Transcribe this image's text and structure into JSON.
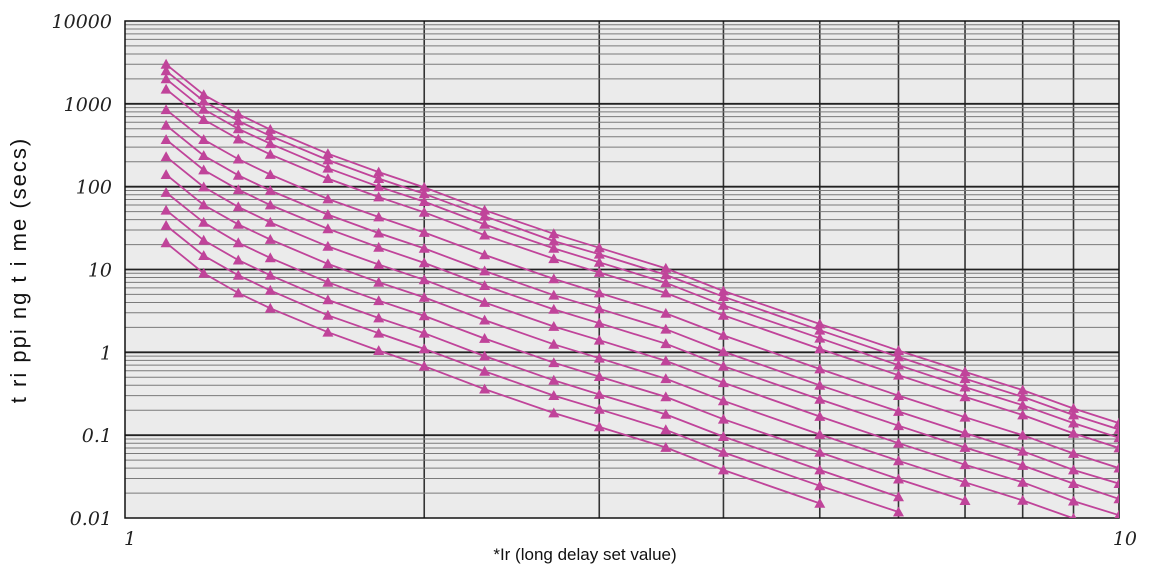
{
  "chart_data": {
    "type": "line",
    "xlabel": "*Ir (long delay set value)",
    "ylabel": "t ri ppi ng t i me (secs)",
    "xscale": "log",
    "yscale": "log",
    "xlim": [
      1,
      10
    ],
    "ylim": [
      0.01,
      10000
    ],
    "x_tick_labels": [
      "1",
      "10"
    ],
    "y_tick_labels": [
      "0.01",
      "0.1",
      "1",
      "10",
      "100",
      "1000",
      "10000"
    ],
    "grid": true,
    "marker": "triangle",
    "line_color": "#c0449a",
    "background_color": "#ebebeb",
    "x": [
      1.1,
      1.2,
      1.3,
      1.4,
      1.6,
      1.8,
      2.0,
      2.3,
      2.7,
      3.0,
      3.5,
      4.0,
      5.0,
      6.0,
      7.0,
      8.0,
      9.0,
      10.0
    ],
    "series": [
      {
        "values": [
          3000,
          1290,
          750,
          490,
          250,
          150,
          98,
          52,
          27,
          18.3,
          10.3,
          5.5,
          2.2,
          1.05,
          0.58,
          0.35,
          0.21,
          0.14
        ]
      },
      {
        "values": [
          2500,
          1080,
          620,
          410,
          210,
          125,
          82,
          44,
          22,
          15.3,
          8.6,
          4.7,
          1.85,
          0.88,
          0.48,
          0.29,
          0.175,
          0.117
        ]
      },
      {
        "values": [
          2000,
          860,
          500,
          330,
          167,
          100,
          66,
          35,
          18,
          12.2,
          6.9,
          3.7,
          1.48,
          0.7,
          0.38,
          0.23,
          0.14,
          0.093
        ]
      },
      {
        "values": [
          1500,
          645,
          375,
          245,
          125,
          75,
          49,
          26,
          13.5,
          9.2,
          5.2,
          2.8,
          1.1,
          0.53,
          0.29,
          0.175,
          0.105,
          0.07
        ]
      },
      {
        "values": [
          850,
          370,
          215,
          140,
          71,
          43,
          28,
          15,
          7.7,
          5.2,
          2.95,
          1.6,
          0.63,
          0.3,
          0.165,
          0.1,
          0.06,
          0.04
        ]
      },
      {
        "values": [
          550,
          237,
          137,
          90,
          46,
          27.5,
          18,
          9.6,
          4.9,
          3.35,
          1.9,
          1.02,
          0.4,
          0.193,
          0.106,
          0.064,
          0.038,
          0.026
        ]
      },
      {
        "values": [
          370,
          159,
          92,
          60,
          31,
          18.5,
          12,
          6.4,
          3.3,
          2.25,
          1.27,
          0.68,
          0.27,
          0.13,
          0.071,
          0.043,
          0.026,
          0.017
        ]
      },
      {
        "values": [
          230,
          99,
          57,
          37,
          19,
          11.5,
          7.5,
          4.0,
          2.05,
          1.4,
          0.79,
          0.43,
          0.168,
          0.08,
          0.044,
          0.027,
          0.016,
          0.0108
        ]
      },
      {
        "values": [
          140,
          60,
          35,
          23,
          11.7,
          7.0,
          4.6,
          2.45,
          1.25,
          0.85,
          0.48,
          0.26,
          0.102,
          0.049,
          0.027,
          0.0163,
          0.0099,
          null
        ]
      },
      {
        "values": [
          85,
          37,
          21,
          13.8,
          7.0,
          4.2,
          2.75,
          1.47,
          0.75,
          0.51,
          0.29,
          0.156,
          0.062,
          0.0295,
          0.0162,
          null,
          null,
          null
        ]
      },
      {
        "values": [
          52,
          22.5,
          13,
          8.5,
          4.3,
          2.6,
          1.7,
          0.9,
          0.46,
          0.31,
          0.178,
          0.096,
          0.038,
          0.018,
          null,
          null,
          null,
          null
        ]
      },
      {
        "values": [
          34,
          14.7,
          8.5,
          5.6,
          2.8,
          1.7,
          1.1,
          0.59,
          0.3,
          0.205,
          0.116,
          0.062,
          0.0245,
          0.0118,
          null,
          null,
          null,
          null
        ]
      },
      {
        "values": [
          21,
          9.0,
          5.2,
          3.4,
          1.75,
          1.05,
          0.68,
          0.36,
          0.185,
          0.126,
          0.071,
          0.038,
          0.015,
          null,
          null,
          null,
          null,
          null
        ]
      }
    ]
  }
}
